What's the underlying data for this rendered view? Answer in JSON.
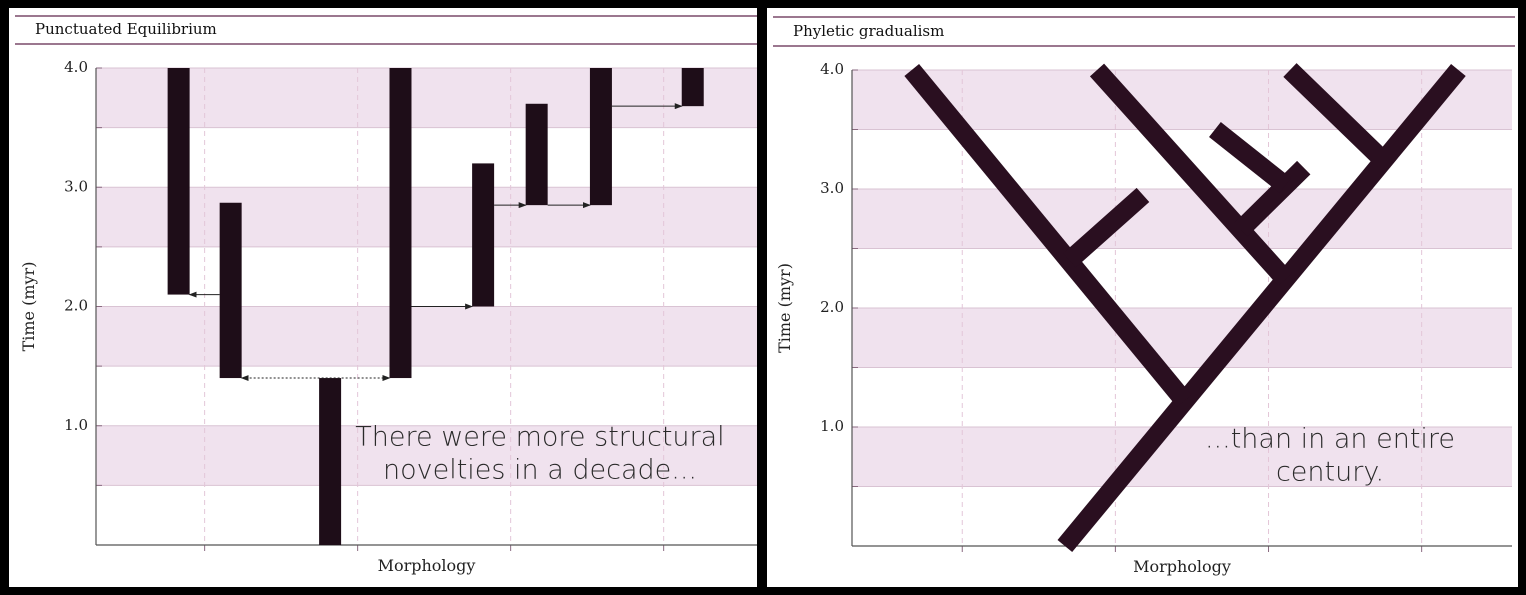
{
  "chart_data": [
    {
      "type": "range-bar",
      "title": "Punctuated Equilibrium",
      "y_label": "Time (myr)",
      "x_label": "Morphology",
      "x": [
        0.83,
        1.17,
        1.82,
        2.28,
        2.82,
        3.17,
        3.59,
        4.19
      ],
      "low": [
        2.1,
        1.4,
        0,
        1.4,
        2.0,
        2.85,
        2.85,
        3.68
      ],
      "high": [
        4.0,
        2.87,
        1.4,
        4.0,
        3.2,
        3.7,
        4.0,
        4.0
      ],
      "color": "#1e0d18",
      "arrows": [
        {
          "from": 1,
          "to": 0,
          "y": 2.1
        },
        {
          "from": 1,
          "to": 3,
          "y": 1.4,
          "both": true
        },
        {
          "from": 3,
          "to": 4,
          "y": 2.0
        },
        {
          "from": 4,
          "to": 5,
          "y": 2.85
        },
        {
          "from": 5,
          "to": 6,
          "y": 2.85
        },
        {
          "from": 6,
          "to": 7,
          "y": 3.68
        }
      ],
      "annotation": [
        "There were more structural",
        "novelties in a decade..."
      ],
      "xlim": [
        0.29,
        4.61
      ],
      "xticks": [
        1,
        2,
        3,
        4
      ],
      "ylim": [
        0,
        4
      ],
      "yticks": [
        {
          "value": 1,
          "label": "1.0"
        },
        {
          "value": 2,
          "label": "2.0"
        },
        {
          "value": 3,
          "label": "3.0"
        },
        {
          "value": 4,
          "label": "4.0"
        }
      ],
      "bands": [
        [
          0.5,
          1
        ],
        [
          1.5,
          2
        ],
        [
          2.5,
          3
        ],
        [
          3.5,
          4
        ]
      ],
      "band_color": "#f0e2ee"
    },
    {
      "type": "branches",
      "title": "Phyletic gradualism",
      "y_label": "Time (myr)",
      "x_label": "Morphology",
      "segments": [
        {
          "x": [
            1.67,
            4.24
          ],
          "y": [
            0,
            4
          ]
        },
        {
          "x": [
            2.45,
            0.67
          ],
          "y": [
            1.22,
            4
          ]
        },
        {
          "x": [
            1.7,
            2.18
          ],
          "y": [
            2.4,
            2.95
          ]
        },
        {
          "x": [
            3.11,
            1.88
          ],
          "y": [
            2.24,
            4
          ]
        },
        {
          "x": [
            2.82,
            3.23
          ],
          "y": [
            2.66,
            3.18
          ]
        },
        {
          "x": [
            3.11,
            2.65
          ],
          "y": [
            3.03,
            3.5
          ]
        },
        {
          "x": [
            3.75,
            3.14
          ],
          "y": [
            3.24,
            4
          ]
        }
      ],
      "color": "#2a0f20",
      "annotation": [
        "...than in an entire",
        "century."
      ],
      "xlim": [
        0.28,
        4.59
      ],
      "xticks": [
        1,
        2,
        3,
        4
      ],
      "ylim": [
        0,
        4
      ],
      "yticks": [
        {
          "value": 1,
          "label": "1.0"
        },
        {
          "value": 2,
          "label": "2.0"
        },
        {
          "value": 3,
          "label": "3.0"
        },
        {
          "value": 4,
          "label": "4.0"
        }
      ],
      "bands": [
        [
          0.5,
          1
        ],
        [
          1.5,
          2
        ],
        [
          2.5,
          3
        ],
        [
          3.5,
          4
        ]
      ],
      "band_color": "#f0e2ee"
    }
  ]
}
